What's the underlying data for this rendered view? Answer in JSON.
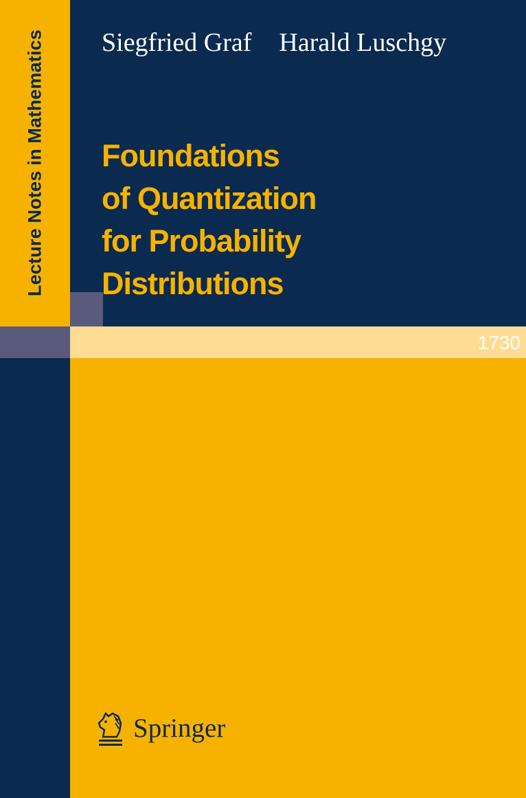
{
  "series": "Lecture Notes in Mathematics",
  "volume": "1730",
  "authors": [
    "Siegfried Graf",
    "Harald Luschgy"
  ],
  "title_lines": [
    "Foundations",
    "of Quantization",
    "for Probability",
    "Distributions"
  ],
  "publisher": "Springer",
  "colors": {
    "navy": "#0a2a4f",
    "yellow": "#f7b200",
    "light_yellow": "#fddc93",
    "slate": "#5a5a7c"
  }
}
